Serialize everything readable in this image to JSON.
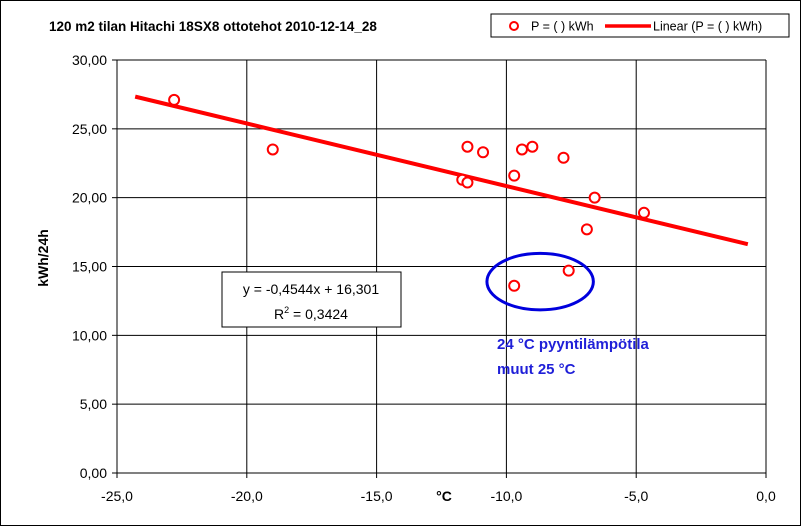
{
  "chart_data": {
    "type": "scatter",
    "title": "120 m2 tilan Hitachi 18SX8 ottotehot 2010-12-14_28",
    "xlabel": "°C",
    "ylabel": "kWh/24h",
    "xlim": [
      -25,
      0
    ],
    "ylim": [
      0,
      30
    ],
    "x_ticks": [
      "-25,0",
      "-20,0",
      "-15,0",
      "-10,0",
      "-5,0",
      "0,0"
    ],
    "y_ticks": [
      "0,00",
      "5,00",
      "10,00",
      "15,00",
      "20,00",
      "25,00",
      "30,00"
    ],
    "grid": true,
    "legend_position": "top-right",
    "series": [
      {
        "name": "P = ( ) kWh",
        "color": "#ff0000",
        "marker": "open-circle",
        "points": [
          {
            "x": -22.8,
            "y": 27.1
          },
          {
            "x": -19.0,
            "y": 23.5
          },
          {
            "x": -11.5,
            "y": 23.7
          },
          {
            "x": -10.9,
            "y": 23.3
          },
          {
            "x": -11.7,
            "y": 21.3
          },
          {
            "x": -11.5,
            "y": 21.1
          },
          {
            "x": -9.4,
            "y": 23.5
          },
          {
            "x": -9.0,
            "y": 23.7
          },
          {
            "x": -7.8,
            "y": 22.9
          },
          {
            "x": -9.7,
            "y": 21.6
          },
          {
            "x": -6.6,
            "y": 20.0
          },
          {
            "x": -4.7,
            "y": 18.9
          },
          {
            "x": -6.9,
            "y": 17.7
          },
          {
            "x": -7.6,
            "y": 14.7
          },
          {
            "x": -9.7,
            "y": 13.6
          }
        ]
      },
      {
        "name": "Linear (P = ( ) kWh)",
        "color": "#ff0000",
        "type": "line",
        "points": [
          {
            "x": -24.3,
            "y": 27.34
          },
          {
            "x": -0.7,
            "y": 16.62
          }
        ]
      }
    ],
    "annotations": {
      "equation_line1": "y = -0,4544x + 16,301",
      "equation_r2_prefix": "R",
      "equation_r2_sup": "2",
      "equation_r2_value": " = 0,3424",
      "note_line1": "24 °C pyyntilämpötila",
      "note_line2": "muut 25 °C",
      "note_color": "#1f1fd8",
      "ellipse_center": {
        "x": -8.7,
        "y": 13.9
      },
      "ellipse_rx_units": 2.05,
      "ellipse_ry_units": 2.05,
      "ellipse_color": "#0000dd"
    }
  }
}
